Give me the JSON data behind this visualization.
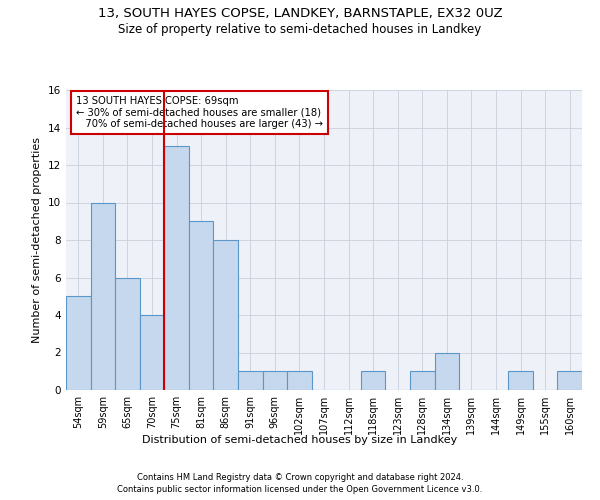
{
  "title": "13, SOUTH HAYES COPSE, LANDKEY, BARNSTAPLE, EX32 0UZ",
  "subtitle": "Size of property relative to semi-detached houses in Landkey",
  "xlabel": "Distribution of semi-detached houses by size in Landkey",
  "ylabel": "Number of semi-detached properties",
  "categories": [
    "54sqm",
    "59sqm",
    "65sqm",
    "70sqm",
    "75sqm",
    "81sqm",
    "86sqm",
    "91sqm",
    "96sqm",
    "102sqm",
    "107sqm",
    "112sqm",
    "118sqm",
    "123sqm",
    "128sqm",
    "134sqm",
    "139sqm",
    "144sqm",
    "149sqm",
    "155sqm",
    "160sqm"
  ],
  "values": [
    5,
    10,
    6,
    4,
    13,
    9,
    8,
    1,
    1,
    1,
    0,
    0,
    1,
    0,
    1,
    2,
    0,
    0,
    1,
    0,
    1
  ],
  "bar_color": "#c5d8ed",
  "bar_edge_color": "#5a96c8",
  "property_line_x": 3.5,
  "annotation_text": "13 SOUTH HAYES COPSE: 69sqm\n← 30% of semi-detached houses are smaller (18)\n   70% of semi-detached houses are larger (43) →",
  "annotation_box_color": "#ffffff",
  "annotation_box_edge": "#cc0000",
  "vline_color": "#cc0000",
  "ylim": [
    0,
    16
  ],
  "yticks": [
    0,
    2,
    4,
    6,
    8,
    10,
    12,
    14,
    16
  ],
  "grid_color": "#c8d0dc",
  "footer_line1": "Contains HM Land Registry data © Crown copyright and database right 2024.",
  "footer_line2": "Contains public sector information licensed under the Open Government Licence v3.0.",
  "background_color": "#eef2f8",
  "title_fontsize": 9.5,
  "subtitle_fontsize": 8.5,
  "xlabel_fontsize": 8,
  "ylabel_fontsize": 8
}
